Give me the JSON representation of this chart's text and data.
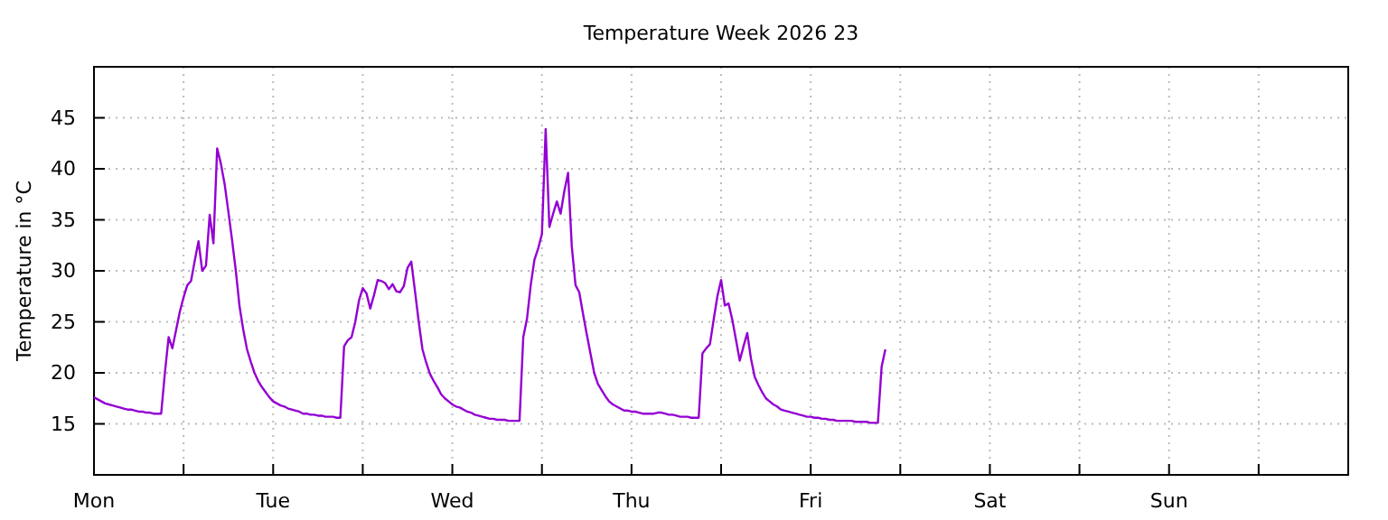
{
  "chart_data": {
    "type": "line",
    "title": "Temperature Week 2026 23",
    "ylabel": "Temperature in °C",
    "categories": [
      "Mon",
      null,
      null,
      null,
      null,
      null,
      null,
      null,
      null,
      null,
      null,
      null,
      null,
      null,
      null,
      null,
      null,
      null,
      null,
      null,
      null,
      null,
      null,
      null,
      null,
      null,
      null,
      null,
      null,
      null,
      null,
      null,
      null,
      null,
      null,
      null,
      null,
      null,
      null,
      null,
      null,
      null,
      null,
      null,
      null,
      null,
      null,
      null,
      "Tue",
      null,
      null,
      null,
      null,
      null,
      null,
      null,
      null,
      null,
      null,
      null,
      null,
      null,
      null,
      null,
      null,
      null,
      null,
      null,
      null,
      null,
      null,
      null,
      null,
      null,
      null,
      null,
      null,
      null,
      null,
      null,
      null,
      null,
      null,
      null,
      null,
      null,
      null,
      null,
      null,
      null,
      null,
      null,
      null,
      null,
      null,
      null,
      "Wed",
      null,
      null,
      null,
      null,
      null,
      null,
      null,
      null,
      null,
      null,
      null,
      null,
      null,
      null,
      null,
      null,
      null,
      null,
      null,
      null,
      null,
      null,
      null,
      null,
      null,
      null,
      null,
      null,
      null,
      null,
      null,
      null,
      null,
      null,
      null,
      null,
      null,
      null,
      null,
      null,
      null,
      null,
      null,
      null,
      null,
      null,
      null,
      "Thu",
      null,
      null,
      null,
      null,
      null,
      null,
      null,
      null,
      null,
      null,
      null,
      null,
      null,
      null,
      null,
      null,
      null,
      null,
      null,
      null,
      null,
      null,
      null,
      null,
      null,
      null,
      null,
      null,
      null,
      null,
      null,
      null,
      null,
      null,
      null,
      null,
      null,
      null,
      null,
      null,
      null,
      null,
      null,
      null,
      null,
      null,
      null,
      "Fri",
      null,
      null,
      null,
      null,
      null,
      null,
      null,
      null,
      null,
      null,
      null,
      null,
      null,
      null,
      null,
      null,
      null,
      null,
      null,
      null,
      null,
      null,
      null,
      null,
      null,
      null,
      null,
      null,
      null,
      null,
      null,
      null,
      null,
      null,
      null,
      null,
      null,
      null,
      null,
      null,
      null,
      null,
      null,
      null,
      null,
      null,
      null,
      "Sat",
      null,
      null,
      null,
      null,
      null,
      null,
      null,
      null,
      null,
      null,
      null,
      null,
      null,
      null,
      null,
      null,
      null,
      null,
      null,
      null,
      null,
      null,
      null,
      null,
      null,
      null,
      null,
      null,
      null,
      null,
      null,
      null,
      null,
      null,
      null,
      null,
      null,
      null,
      null,
      null,
      null,
      null,
      null,
      null,
      null,
      null,
      null,
      "Sun",
      null,
      null,
      null,
      null,
      null,
      null,
      null,
      null,
      null,
      null,
      null,
      null,
      null,
      null,
      null,
      null,
      null,
      null,
      null,
      null,
      null,
      null,
      null,
      null,
      null,
      null,
      null,
      null,
      null,
      null,
      null,
      null,
      null,
      null,
      null,
      null,
      null,
      null,
      null,
      null,
      null,
      null,
      null,
      null,
      null,
      null,
      null
    ],
    "ylim": [
      10,
      50
    ],
    "yticks": [
      15,
      20,
      25,
      30,
      35,
      40,
      45
    ],
    "grid": true,
    "line_style": "solid",
    "marker": "none",
    "series": [
      {
        "color": "#9400d3",
        "values": [
          17.6,
          17.4,
          17.2,
          17.0,
          16.9,
          16.8,
          16.7,
          16.6,
          16.5,
          16.4,
          16.4,
          16.3,
          16.2,
          16.2,
          16.1,
          16.1,
          16.0,
          16.0,
          16.0,
          20.0,
          23.5,
          22.4,
          24.2,
          26.0,
          27.4,
          28.6,
          29.0,
          31.0,
          32.9,
          30.0,
          30.5,
          35.5,
          32.7,
          42.0,
          40.5,
          38.5,
          35.8,
          33.0,
          30.0,
          26.5,
          24.2,
          22.3,
          21.1,
          20.0,
          19.2,
          18.6,
          18.1,
          17.6,
          17.2,
          17.0,
          16.8,
          16.7,
          16.5,
          16.4,
          16.3,
          16.2,
          16.0,
          16.0,
          15.9,
          15.9,
          15.8,
          15.8,
          15.7,
          15.7,
          15.7,
          15.6,
          15.6,
          22.6,
          23.2,
          23.5,
          25.0,
          27.1,
          28.3,
          27.8,
          26.3,
          27.6,
          29.1,
          29.0,
          28.8,
          28.2,
          28.7,
          28.0,
          27.9,
          28.5,
          30.3,
          30.9,
          28.0,
          25.0,
          22.3,
          21.0,
          19.9,
          19.2,
          18.6,
          17.9,
          17.5,
          17.2,
          16.9,
          16.7,
          16.6,
          16.4,
          16.2,
          16.1,
          15.9,
          15.8,
          15.7,
          15.6,
          15.5,
          15.5,
          15.4,
          15.4,
          15.4,
          15.3,
          15.3,
          15.3,
          15.3,
          23.5,
          25.3,
          28.6,
          31.1,
          32.2,
          33.6,
          43.9,
          34.3,
          35.6,
          36.8,
          35.6,
          37.8,
          39.6,
          32.4,
          28.6,
          27.9,
          25.8,
          23.8,
          21.9,
          20.0,
          18.9,
          18.3,
          17.7,
          17.2,
          16.9,
          16.7,
          16.5,
          16.3,
          16.3,
          16.2,
          16.2,
          16.1,
          16.0,
          16.0,
          16.0,
          16.0,
          16.1,
          16.1,
          16.0,
          15.9,
          15.9,
          15.8,
          15.7,
          15.7,
          15.7,
          15.6,
          15.6,
          15.6,
          21.9,
          22.4,
          22.8,
          25.2,
          27.5,
          29.1,
          26.6,
          26.8,
          25.2,
          23.2,
          21.2,
          22.6,
          23.9,
          21.4,
          19.6,
          18.8,
          18.1,
          17.5,
          17.2,
          16.9,
          16.7,
          16.4,
          16.3,
          16.2,
          16.1,
          16.0,
          15.9,
          15.8,
          15.7,
          15.7,
          15.6,
          15.6,
          15.5,
          15.5,
          15.4,
          15.4,
          15.3,
          15.3,
          15.3,
          15.3,
          15.3,
          15.2,
          15.2,
          15.2,
          15.2,
          15.1,
          15.1,
          15.1,
          20.6,
          22.3,
          null,
          null,
          null,
          null,
          null,
          null,
          null,
          null,
          null,
          null,
          null,
          null,
          null,
          null,
          null,
          null,
          null,
          null,
          null,
          null,
          null,
          null,
          null,
          null,
          null,
          null,
          null,
          null,
          null,
          null,
          null,
          null,
          null,
          null,
          null,
          null,
          null,
          null,
          null,
          null,
          null,
          null,
          null,
          null,
          null,
          null,
          null,
          null,
          null,
          null,
          null,
          null,
          null,
          null,
          null,
          null,
          null,
          null,
          null,
          null,
          null,
          null,
          null,
          null,
          null,
          null,
          null,
          null,
          null,
          null,
          null,
          null,
          null,
          null,
          null,
          null,
          null,
          null,
          null,
          null,
          null,
          null,
          null,
          null,
          null,
          null,
          null,
          null,
          null,
          null,
          null,
          null,
          null,
          null,
          null,
          null,
          null,
          null,
          null,
          null,
          null,
          null,
          null,
          null,
          null,
          null,
          null,
          null,
          null,
          null,
          null,
          null,
          null,
          null,
          null,
          null,
          null,
          null,
          null,
          null,
          null,
          null,
          null
        ]
      }
    ]
  }
}
